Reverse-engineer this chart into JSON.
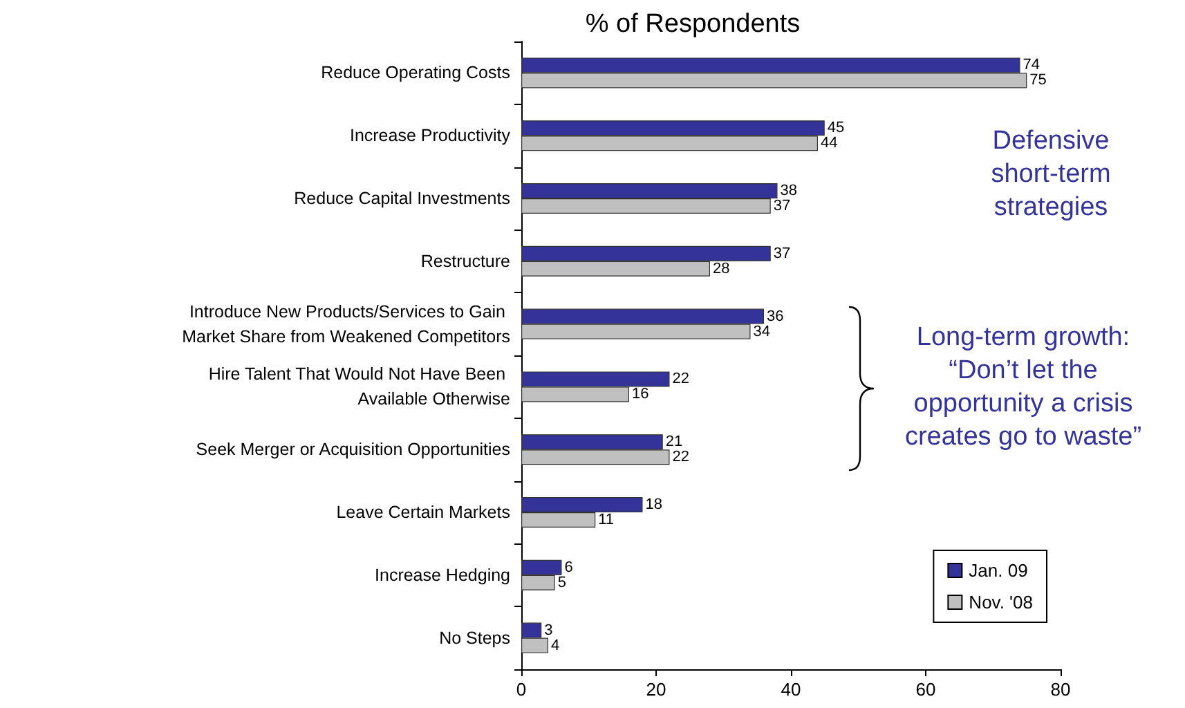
{
  "chart_data": {
    "type": "bar",
    "orientation": "horizontal",
    "title": "% of Respondents",
    "categories": [
      "Reduce Operating Costs",
      "Increase Productivity",
      "Reduce Capital Investments",
      "Restructure",
      "Introduce New Products/Services to Gain Market Share from Weakened Competitors",
      "Hire Talent That Would Not Have Been Available Otherwise",
      "Seek Merger or Acquisition Opportunities",
      "Leave Certain Markets",
      "Increase Hedging",
      "No Steps"
    ],
    "series": [
      {
        "name": "Jan. 09",
        "color": "#333399",
        "values": [
          74,
          45,
          38,
          37,
          36,
          22,
          21,
          18,
          6,
          3
        ]
      },
      {
        "name": "Nov. '08",
        "color": "#c0c0c0",
        "values": [
          75,
          44,
          37,
          28,
          34,
          16,
          22,
          11,
          5,
          4
        ]
      }
    ],
    "xlim": [
      0,
      80
    ],
    "xticks": [
      0,
      20,
      40,
      60,
      80
    ],
    "grid": false,
    "legend": "bottom right",
    "data_labels": true,
    "annotations": [
      "Defensive\nshort-term\nstrategies",
      "Long-term growth:\n“Don’t let the\nopportunity a crisis\ncreates go to waste”"
    ]
  }
}
